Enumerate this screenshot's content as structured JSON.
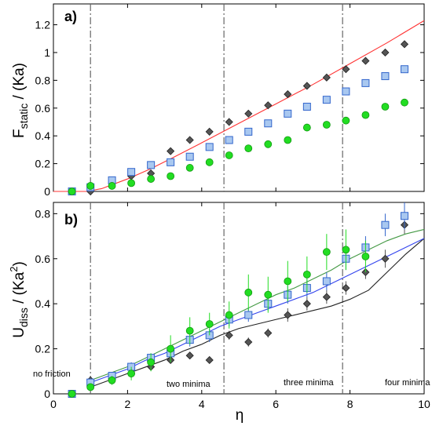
{
  "chart_data": [
    {
      "panel": "a)",
      "type": "scatter",
      "ylabel": {
        "base": "F",
        "sub": "static",
        "rest": " / (Ka)"
      },
      "xlim": [
        0,
        10
      ],
      "ylim": [
        0,
        1.35
      ],
      "xticks": [
        "0",
        "2",
        "4",
        "6",
        "8",
        "10"
      ],
      "yticks": [
        "0",
        "0.2",
        "0.4",
        "0.6",
        "0.8",
        "1",
        "1.2"
      ],
      "ytick_values": [
        0,
        0.2,
        0.4,
        0.6,
        0.8,
        1.0,
        1.2
      ],
      "vlines": [
        1.0,
        4.6,
        7.8
      ],
      "series": [
        {
          "marker": "diamond",
          "color": "#555555",
          "x": [
            0.5,
            1.0,
            1.58,
            2.1,
            2.63,
            3.16,
            3.68,
            4.21,
            4.74,
            5.26,
            5.79,
            6.32,
            6.84,
            7.37,
            7.89,
            8.42,
            8.95,
            9.47
          ],
          "y": [
            0.0,
            0.0,
            0.06,
            0.11,
            0.13,
            0.29,
            0.37,
            0.43,
            0.5,
            0.56,
            0.62,
            0.7,
            0.76,
            0.82,
            0.88,
            0.94,
            1.0,
            1.06
          ]
        },
        {
          "marker": "square",
          "color": "#a9c8f0",
          "x": [
            0.5,
            1.0,
            1.58,
            2.1,
            2.63,
            3.16,
            3.68,
            4.21,
            4.74,
            5.26,
            5.79,
            6.32,
            6.84,
            7.37,
            7.89,
            8.42,
            8.95,
            9.47
          ],
          "y": [
            0.0,
            0.03,
            0.08,
            0.14,
            0.19,
            0.21,
            0.25,
            0.32,
            0.37,
            0.43,
            0.49,
            0.56,
            0.61,
            0.66,
            0.72,
            0.78,
            0.83,
            0.88
          ]
        },
        {
          "marker": "circle",
          "color": "#22dd22",
          "x": [
            0.5,
            1.0,
            1.58,
            2.1,
            2.63,
            3.16,
            3.68,
            4.21,
            4.74,
            5.26,
            5.79,
            6.32,
            6.84,
            7.37,
            7.89,
            8.42,
            8.95,
            9.47
          ],
          "y": [
            0.0,
            0.04,
            0.04,
            0.06,
            0.09,
            0.11,
            0.17,
            0.21,
            0.26,
            0.31,
            0.34,
            0.37,
            0.46,
            0.48,
            0.51,
            0.55,
            0.61,
            0.64
          ]
        },
        {
          "marker": "line",
          "color": "#ff3333",
          "x": [
            0,
            0.9,
            1.3,
            2.0,
            2.6,
            3.2,
            4.0,
            5.0,
            6.0,
            7.0,
            8.0,
            9.0,
            10.0
          ],
          "y": [
            0,
            0,
            0.02,
            0.09,
            0.16,
            0.24,
            0.35,
            0.49,
            0.63,
            0.77,
            0.92,
            1.07,
            1.23
          ]
        }
      ]
    },
    {
      "panel": "b)",
      "type": "scatter",
      "xlabel": "η",
      "ylabel": {
        "base": "U",
        "sub": "diss",
        "rest": " / (Ka",
        "sup": "2",
        "end": ")"
      },
      "xlim": [
        0,
        10
      ],
      "ylim": [
        0,
        0.85
      ],
      "xticks": [
        "0",
        "2",
        "4",
        "6",
        "8",
        "10"
      ],
      "xtick_values": [
        0,
        2,
        4,
        6,
        8,
        10
      ],
      "yticks": [
        "0",
        "0.2",
        "0.4",
        "0.6",
        "0.8"
      ],
      "ytick_values": [
        0,
        0.2,
        0.4,
        0.6,
        0.8
      ],
      "vlines": [
        1.0,
        4.6,
        7.8
      ],
      "regions": [
        "no friction",
        "two minima",
        "three minima",
        "four minima"
      ],
      "series": [
        {
          "marker": "diamond",
          "color": "#555555",
          "x": [
            1.0,
            1.58,
            2.1,
            2.63,
            3.16,
            3.68,
            4.21,
            4.74,
            5.26,
            5.79,
            6.32,
            6.84,
            7.37,
            7.89,
            8.42,
            8.95,
            9.47
          ],
          "y": [
            0.06,
            0.08,
            0.09,
            0.12,
            0.15,
            0.17,
            0.15,
            0.26,
            0.23,
            0.27,
            0.35,
            0.4,
            0.43,
            0.47,
            0.54,
            0.6,
            0.75
          ],
          "err": [
            0.01,
            0.01,
            0.01,
            0.01,
            0.01,
            0.01,
            0.01,
            0.02,
            0.02,
            0.02,
            0.03,
            0.03,
            0.03,
            0.03,
            0.03,
            0.04,
            0.04
          ]
        },
        {
          "marker": "square",
          "color": "#a9c8f0",
          "x": [
            0.5,
            1.0,
            1.58,
            2.1,
            2.63,
            3.16,
            3.68,
            4.21,
            4.74,
            5.26,
            5.79,
            6.32,
            6.84,
            7.37,
            7.89,
            8.42,
            8.95,
            9.47
          ],
          "y": [
            0.0,
            0.05,
            0.08,
            0.12,
            0.16,
            0.18,
            0.24,
            0.26,
            0.33,
            0.35,
            0.4,
            0.44,
            0.47,
            0.5,
            0.6,
            0.65,
            0.75,
            0.79
          ],
          "err": [
            0.0,
            0.01,
            0.01,
            0.02,
            0.02,
            0.02,
            0.03,
            0.03,
            0.03,
            0.03,
            0.03,
            0.04,
            0.04,
            0.04,
            0.05,
            0.05,
            0.05,
            0.06
          ]
        },
        {
          "marker": "circle",
          "color": "#22dd22",
          "x": [
            0.5,
            1.0,
            1.58,
            2.1,
            2.63,
            3.16,
            3.68,
            4.21,
            4.74,
            5.26,
            5.79,
            6.32,
            6.84,
            7.37,
            7.89,
            8.42
          ],
          "y": [
            0.0,
            0.03,
            0.06,
            0.09,
            0.14,
            0.2,
            0.28,
            0.31,
            0.35,
            0.45,
            0.44,
            0.5,
            0.53,
            0.63,
            0.64,
            0.61
          ],
          "err": [
            0.0,
            0.01,
            0.02,
            0.03,
            0.04,
            0.06,
            0.06,
            0.05,
            0.06,
            0.08,
            0.08,
            0.09,
            0.08,
            0.08,
            0.09,
            0.07
          ]
        },
        {
          "marker": "line",
          "color": "#222222",
          "x": [
            1.0,
            1.5,
            2.0,
            2.5,
            3.0,
            3.5,
            4.0,
            4.5,
            5.0,
            5.5,
            6.0,
            6.5,
            7.0,
            7.5,
            8.0,
            8.5,
            9.0,
            9.5,
            10.0
          ],
          "y": [
            0.03,
            0.06,
            0.09,
            0.12,
            0.15,
            0.19,
            0.22,
            0.26,
            0.29,
            0.31,
            0.33,
            0.35,
            0.37,
            0.39,
            0.42,
            0.46,
            0.54,
            0.62,
            0.69
          ]
        },
        {
          "marker": "line",
          "color": "#3344ee",
          "x": [
            1.0,
            1.5,
            2.0,
            2.5,
            3.0,
            3.5,
            4.0,
            4.5,
            5.0,
            5.5,
            6.0,
            6.5,
            7.0,
            7.5,
            8.0,
            8.5,
            9.0,
            9.5,
            10.0
          ],
          "y": [
            0.05,
            0.08,
            0.11,
            0.15,
            0.18,
            0.22,
            0.26,
            0.3,
            0.33,
            0.36,
            0.39,
            0.42,
            0.45,
            0.49,
            0.53,
            0.57,
            0.61,
            0.65,
            0.69
          ]
        },
        {
          "marker": "line",
          "color": "#449944",
          "x": [
            1.0,
            1.5,
            2.0,
            2.5,
            3.0,
            3.5,
            4.0,
            4.5,
            5.0,
            5.5,
            6.0,
            6.5,
            7.0,
            7.5,
            8.0,
            8.5,
            9.0,
            9.5,
            10.0
          ],
          "y": [
            0.06,
            0.09,
            0.12,
            0.16,
            0.2,
            0.24,
            0.28,
            0.32,
            0.36,
            0.4,
            0.44,
            0.47,
            0.51,
            0.55,
            0.6,
            0.64,
            0.68,
            0.71,
            0.73
          ]
        }
      ]
    }
  ]
}
